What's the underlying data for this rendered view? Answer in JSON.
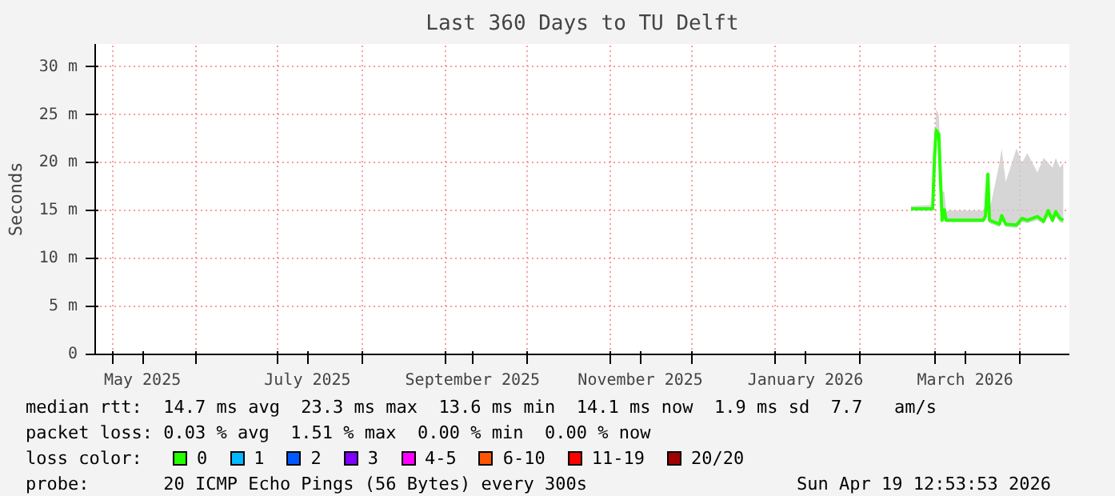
{
  "chart_data": {
    "type": "line",
    "title": "Last 360 Days to TU Delft",
    "ylabel": "Seconds",
    "xlim": [
      "2025-04-24T12:53",
      "2026-04-19T12:53"
    ],
    "xticks": [
      {
        "value": "2025-05-01",
        "label": null
      },
      {
        "value": "2025-05-12",
        "label": "May 2025"
      },
      {
        "value": "2025-06-01",
        "label": null
      },
      {
        "value": "2025-07-01",
        "label": null
      },
      {
        "value": "2025-07-12",
        "label": "July 2025"
      },
      {
        "value": "2025-08-01",
        "label": null
      },
      {
        "value": "2025-09-01",
        "label": null
      },
      {
        "value": "2025-09-11",
        "label": "September 2025"
      },
      {
        "value": "2025-10-01",
        "label": null
      },
      {
        "value": "2025-11-01",
        "label": null
      },
      {
        "value": "2025-11-12",
        "label": "November 2025"
      },
      {
        "value": "2025-12-01",
        "label": null
      },
      {
        "value": "2026-01-01",
        "label": null
      },
      {
        "value": "2026-01-12",
        "label": "January 2026"
      },
      {
        "value": "2026-02-01",
        "label": null
      },
      {
        "value": "2026-03-01",
        "label": null
      },
      {
        "value": "2026-03-12",
        "label": "March 2026"
      },
      {
        "value": "2026-04-01",
        "label": null
      }
    ],
    "ylim": [
      0,
      32.4
    ],
    "yticks": [
      0,
      {
        "value": 5,
        "label": "5 m"
      },
      {
        "value": 10,
        "label": "10 m"
      },
      {
        "value": 15,
        "label": "15 m"
      },
      {
        "value": 20,
        "label": "20 m"
      },
      {
        "value": 25,
        "label": "25 m"
      },
      {
        "value": 30,
        "label": "30 m"
      }
    ],
    "grid": true,
    "legend": "bottom",
    "legend_title": "loss color:",
    "marker": "none",
    "line_style": "solid",
    "series": [
      {
        "name": "0",
        "color": "#26ff00",
        "x": [
          "2026-02-20",
          "2026-02-28",
          "2026-02-28T17:00",
          "2026-03-01T07:00",
          "2026-03-02T07:00",
          "2026-03-02T17:00",
          "2026-03-03T12:00",
          "2026-03-04T07:00",
          "2026-03-05",
          "2026-03-18T17:00",
          "2026-03-19T12:00",
          "2026-03-20T10:00",
          "2026-03-21",
          "2026-03-24T17:00",
          "2026-03-25T12:00",
          "2026-03-27",
          "2026-03-31",
          "2026-04-02",
          "2026-04-04",
          "2026-04-07T17:00",
          "2026-04-10",
          "2026-04-11T17:00",
          "2026-04-13T07:00",
          "2026-04-14T12:00",
          "2026-04-16",
          "2026-04-17T07:00"
        ],
        "values": [
          15.2,
          15.2,
          20.6,
          23.4,
          23,
          19.7,
          14,
          15.1,
          14,
          14,
          14.4,
          18.8,
          14,
          13.6,
          14.5,
          13.6,
          13.5,
          14.2,
          14,
          14.4,
          13.9,
          15,
          14,
          14.9,
          14.2,
          14
        ],
        "lower": [
          15,
          15,
          20,
          22.5,
          22,
          19,
          13.8,
          14.8,
          13.8,
          13.8,
          14.1,
          18,
          13.7,
          13.3,
          14,
          13.3,
          13.2,
          13.8,
          13.7,
          14,
          13.6,
          14.5,
          13.7,
          14.4,
          13.8,
          13.7
        ],
        "upper": [
          15.5,
          15.6,
          22,
          25.6,
          25,
          22,
          17,
          17,
          15,
          15,
          15.5,
          19,
          15,
          20,
          21.5,
          18,
          21.5,
          20,
          21,
          19,
          20.5,
          20,
          19.5,
          20.5,
          19.5,
          20
        ]
      },
      {
        "name": "1",
        "color": "#00b8ff"
      },
      {
        "name": "2",
        "color": "#0059ff"
      },
      {
        "name": "3",
        "color": "#7e00ff"
      },
      {
        "name": "4-5",
        "color": "#ff00ff"
      },
      {
        "name": "6-10",
        "color": "#ff5500"
      },
      {
        "name": "11-19",
        "color": "#ff0000"
      },
      {
        "name": "20/20",
        "color": "#a10000"
      }
    ],
    "annotations": [
      "median rtt:  14.7 ms avg  23.3 ms max  13.6 ms min  14.1 ms now  1.9 ms sd  7.7   am/s",
      "packet loss: 0.03 % avg  1.51 % max  0.00 % min  0.00 % now",
      "probe:       20 ICMP Echo Pings (56 Bytes) every 300s",
      "Sun Apr 19 12:53:53 2026"
    ]
  }
}
